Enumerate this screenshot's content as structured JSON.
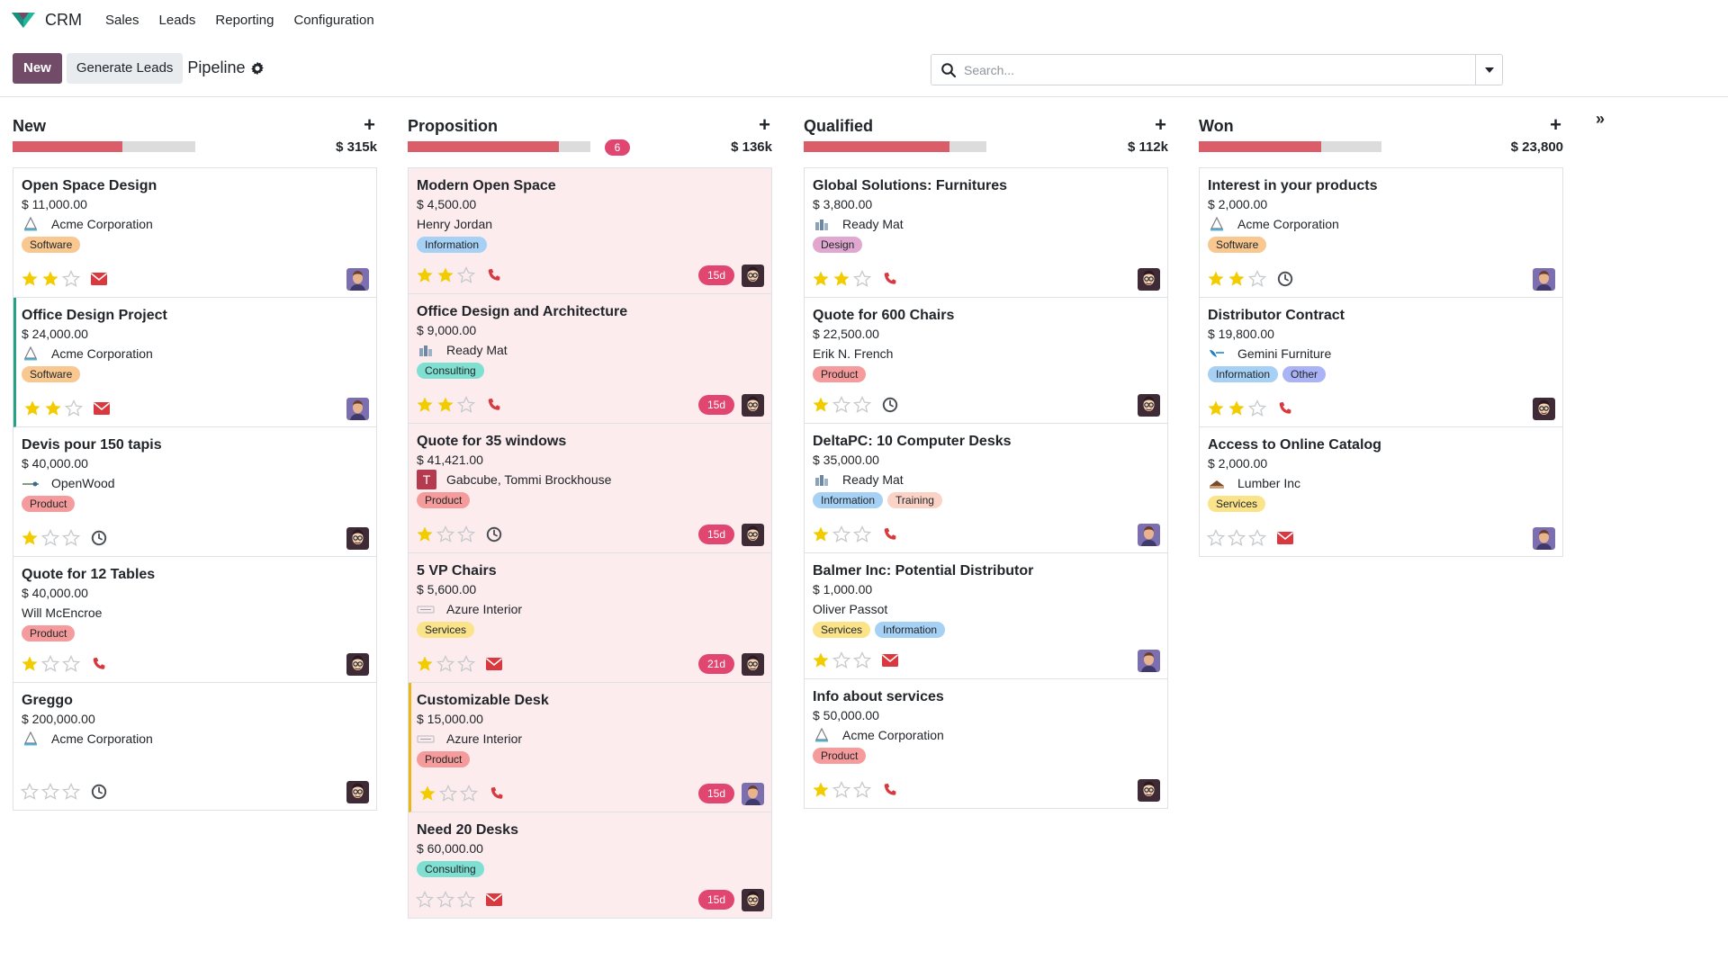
{
  "nav": {
    "app_name": "CRM",
    "menu": [
      "Sales",
      "Leads",
      "Reporting",
      "Configuration"
    ]
  },
  "control": {
    "new_label": "New",
    "generate_label": "Generate Leads",
    "breadcrumb": "Pipeline",
    "search_placeholder": "Search..."
  },
  "colors": {
    "primary": "#714b67",
    "progress": "#dc5d6a",
    "badge": "#e04670",
    "stars": "#f3cc00",
    "activity_red": "#d9383f"
  },
  "columns": [
    {
      "title": "New",
      "sum": "$ 315k",
      "count": "",
      "progress": 0.6,
      "cards": [
        {
          "title": "Open Space Design",
          "amount": "$ 11,000.00",
          "company": "Acme Corporation",
          "logo": "acme",
          "tags": [
            {
              "label": "Software",
              "color": "#f9c891"
            }
          ],
          "stars": 2,
          "activity": "envelope",
          "days": "",
          "avatar": "purple",
          "pink": false,
          "border": ""
        },
        {
          "title": "Office Design Project",
          "amount": "$ 24,000.00",
          "company": "Acme Corporation",
          "logo": "acme",
          "tags": [
            {
              "label": "Software",
              "color": "#f9c891"
            }
          ],
          "stars": 2,
          "activity": "envelope",
          "days": "",
          "avatar": "purple",
          "pink": false,
          "border": "green"
        },
        {
          "title": "Devis pour 150 tapis",
          "amount": "$ 40,000.00",
          "company": "OpenWood",
          "logo": "openwood",
          "tags": [
            {
              "label": "Product",
              "color": "#f69b9b"
            }
          ],
          "stars": 1,
          "activity": "clock",
          "days": "",
          "avatar": "glasses",
          "pink": false,
          "border": ""
        },
        {
          "title": "Quote for 12 Tables",
          "amount": "$ 40,000.00",
          "company": "Will McEncroe",
          "logo": "",
          "tags": [
            {
              "label": "Product",
              "color": "#f69b9b"
            }
          ],
          "stars": 1,
          "activity": "phone",
          "days": "",
          "avatar": "glasses",
          "pink": false,
          "border": ""
        },
        {
          "title": "Greggo",
          "amount": "$ 200,000.00",
          "company": "Acme Corporation",
          "logo": "acme",
          "tags": [],
          "stars": 0,
          "activity": "clock",
          "days": "",
          "avatar": "glasses",
          "pink": false,
          "border": ""
        }
      ]
    },
    {
      "title": "Proposition",
      "sum": "$ 136k",
      "count": "6",
      "progress": 0.83,
      "cards": [
        {
          "title": "Modern Open Space",
          "amount": "$ 4,500.00",
          "company": "Henry Jordan",
          "logo": "",
          "tags": [
            {
              "label": "Information",
              "color": "#a6d1f5"
            }
          ],
          "stars": 2,
          "activity": "phone",
          "days": "15d",
          "avatar": "glasses",
          "pink": true,
          "border": ""
        },
        {
          "title": "Office Design and Architecture",
          "amount": "$ 9,000.00",
          "company": "Ready Mat",
          "logo": "readymat",
          "tags": [
            {
              "label": "Consulting",
              "color": "#7fdfd1"
            }
          ],
          "stars": 2,
          "activity": "phone",
          "days": "15d",
          "avatar": "glasses",
          "pink": true,
          "border": ""
        },
        {
          "title": "Quote for 35 windows",
          "amount": "$ 41,421.00",
          "company": "Gabcube, Tommi Brockhouse",
          "logo": "T",
          "tags": [
            {
              "label": "Product",
              "color": "#f69b9b"
            }
          ],
          "stars": 1,
          "activity": "clock",
          "days": "15d",
          "avatar": "glasses",
          "pink": true,
          "border": ""
        },
        {
          "title": "5 VP Chairs",
          "amount": "$ 5,600.00",
          "company": "Azure Interior",
          "logo": "azure",
          "tags": [
            {
              "label": "Services",
              "color": "#fbe38a"
            }
          ],
          "stars": 1,
          "activity": "envelope",
          "days": "21d",
          "avatar": "glasses",
          "pink": true,
          "border": ""
        },
        {
          "title": "Customizable Desk",
          "amount": "$ 15,000.00",
          "company": "Azure Interior",
          "logo": "azure",
          "tags": [
            {
              "label": "Product",
              "color": "#f69b9b"
            }
          ],
          "stars": 1,
          "activity": "phone",
          "days": "15d",
          "avatar": "purple",
          "pink": true,
          "border": "yellow"
        },
        {
          "title": "Need 20 Desks",
          "amount": "$ 60,000.00",
          "company": "",
          "logo": "",
          "tags": [
            {
              "label": "Consulting",
              "color": "#7fdfd1"
            }
          ],
          "stars": 0,
          "activity": "envelope",
          "days": "15d",
          "avatar": "glasses",
          "pink": true,
          "border": ""
        }
      ]
    },
    {
      "title": "Qualified",
      "sum": "$ 112k",
      "count": "",
      "progress": 0.8,
      "cards": [
        {
          "title": "Global Solutions: Furnitures",
          "amount": "$ 3,800.00",
          "company": "Ready Mat",
          "logo": "readymat",
          "tags": [
            {
              "label": "Design",
              "color": "#e0a8d0"
            }
          ],
          "stars": 2,
          "activity": "phone",
          "days": "",
          "avatar": "glasses",
          "pink": false,
          "border": ""
        },
        {
          "title": "Quote for 600 Chairs",
          "amount": "$ 22,500.00",
          "company": "Erik N. French",
          "logo": "",
          "tags": [
            {
              "label": "Product",
              "color": "#f69b9b"
            }
          ],
          "stars": 1,
          "activity": "clock",
          "days": "",
          "avatar": "glasses",
          "pink": false,
          "border": ""
        },
        {
          "title": "DeltaPC: 10 Computer Desks",
          "amount": "$ 35,000.00",
          "company": "Ready Mat",
          "logo": "readymat",
          "tags": [
            {
              "label": "Information",
              "color": "#a6d1f5"
            },
            {
              "label": "Training",
              "color": "#fbd2c6"
            }
          ],
          "stars": 1,
          "activity": "phone",
          "days": "",
          "avatar": "purple",
          "pink": false,
          "border": ""
        },
        {
          "title": "Balmer Inc: Potential Distributor",
          "amount": "$ 1,000.00",
          "company": "Oliver Passot",
          "logo": "",
          "tags": [
            {
              "label": "Services",
              "color": "#fbe38a"
            },
            {
              "label": "Information",
              "color": "#a6d1f5"
            }
          ],
          "stars": 1,
          "activity": "envelope",
          "days": "",
          "avatar": "purple",
          "pink": false,
          "border": ""
        },
        {
          "title": "Info about services",
          "amount": "$ 50,000.00",
          "company": "Acme Corporation",
          "logo": "acme",
          "tags": [
            {
              "label": "Product",
              "color": "#f69b9b"
            }
          ],
          "stars": 1,
          "activity": "phone",
          "days": "",
          "avatar": "glasses",
          "pink": false,
          "border": ""
        }
      ]
    },
    {
      "title": "Won",
      "sum": "$ 23,800",
      "count": "",
      "progress": 0.67,
      "cards": [
        {
          "title": "Interest in your products",
          "amount": "$ 2,000.00",
          "company": "Acme Corporation",
          "logo": "acme",
          "tags": [
            {
              "label": "Software",
              "color": "#f9c891"
            }
          ],
          "stars": 2,
          "activity": "clock",
          "days": "",
          "avatar": "purple",
          "pink": false,
          "border": ""
        },
        {
          "title": "Distributor Contract",
          "amount": "$ 19,800.00",
          "company": "Gemini Furniture",
          "logo": "gemini",
          "tags": [
            {
              "label": "Information",
              "color": "#a6d1f5"
            },
            {
              "label": "Other",
              "color": "#a9b3f5"
            }
          ],
          "stars": 2,
          "activity": "phone",
          "days": "",
          "avatar": "glasses",
          "pink": false,
          "border": ""
        },
        {
          "title": "Access to Online Catalog",
          "amount": "$ 2,000.00",
          "company": "Lumber Inc",
          "logo": "lumber",
          "tags": [
            {
              "label": "Services",
              "color": "#fbe38a"
            }
          ],
          "stars": 0,
          "activity": "envelope",
          "days": "",
          "avatar": "purple",
          "pink": false,
          "border": ""
        }
      ]
    }
  ]
}
